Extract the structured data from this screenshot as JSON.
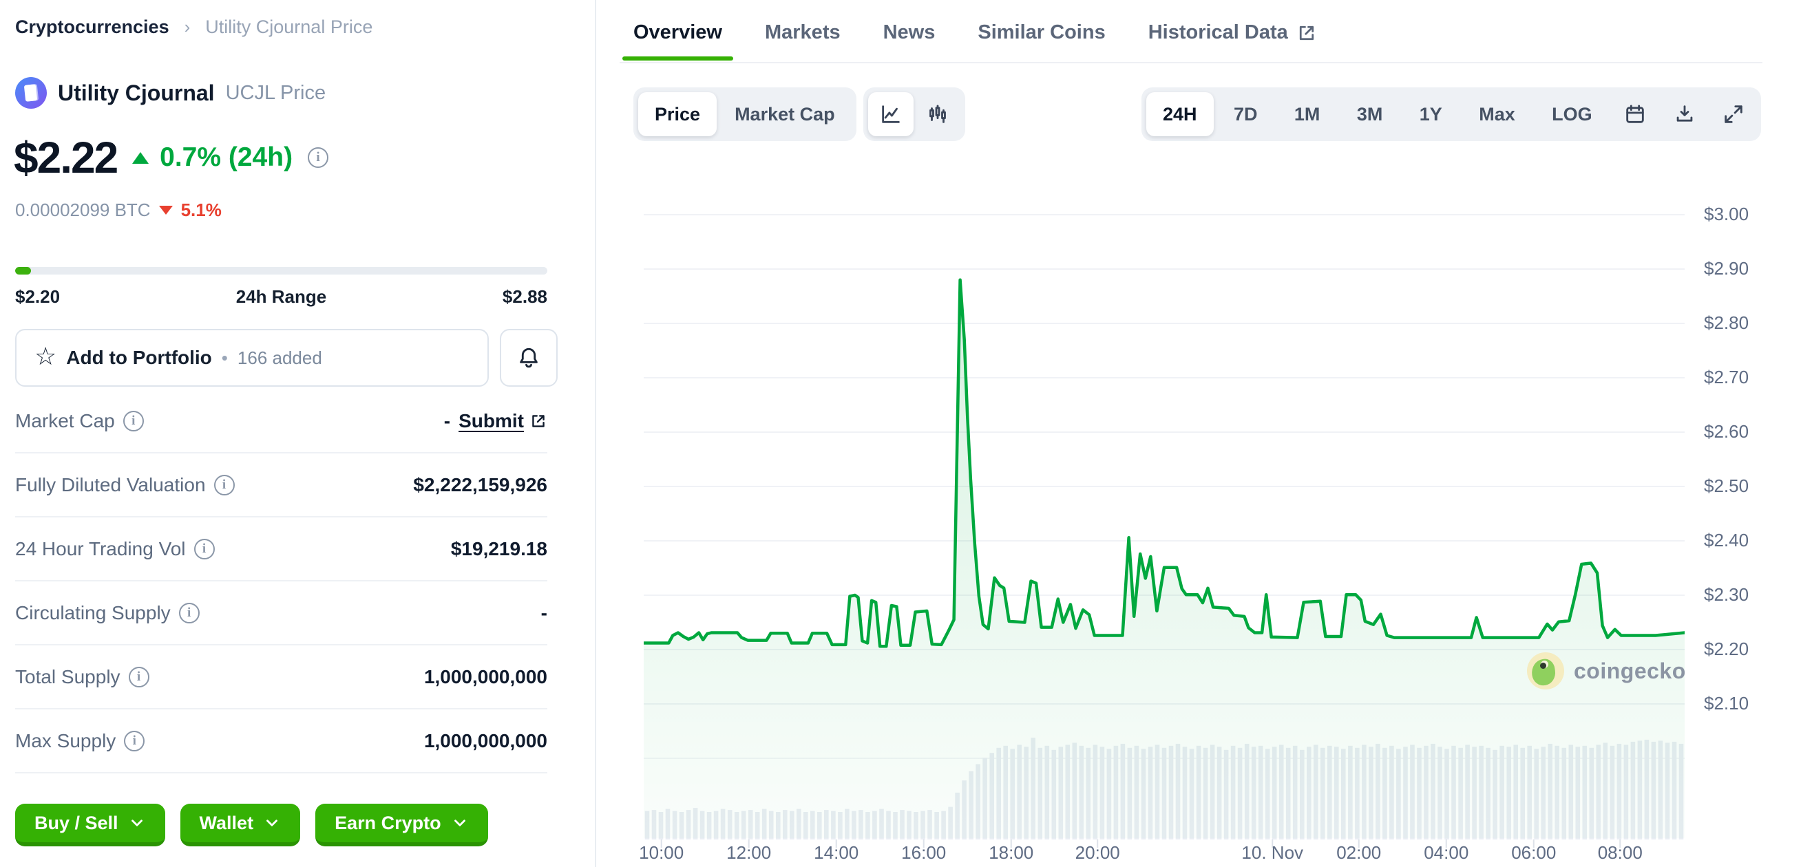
{
  "breadcrumb": {
    "root": "Cryptocurrencies",
    "separator": "›",
    "current": "Utility Cjournal Price"
  },
  "coin": {
    "name": "Utility Cjournal",
    "symbol_label": "UCJL Price",
    "price": "$2.22",
    "change_24h": "0.7% (24h)",
    "btc_price": "0.00002099 BTC",
    "btc_change": "5.1%",
    "range": {
      "low": "$2.20",
      "label": "24h Range",
      "high": "$2.88",
      "progress_pct": 3
    }
  },
  "actions": {
    "portfolio_label": "Add to Portfolio",
    "portfolio_dot": "•",
    "portfolio_added": "166 added"
  },
  "stats": {
    "rows": [
      {
        "label": "Market Cap",
        "value": "-",
        "link": "Submit"
      },
      {
        "label": "Fully Diluted Valuation",
        "value": "$2,222,159,926"
      },
      {
        "label": "24 Hour Trading Vol",
        "value": "$19,219.18"
      },
      {
        "label": "Circulating Supply",
        "value": "-"
      },
      {
        "label": "Total Supply",
        "value": "1,000,000,000"
      },
      {
        "label": "Max Supply",
        "value": "1,000,000,000"
      }
    ]
  },
  "cta_buttons": [
    {
      "label": "Buy / Sell"
    },
    {
      "label": "Wallet"
    },
    {
      "label": "Earn Crypto"
    }
  ],
  "tabs": [
    {
      "label": "Overview",
      "active": true
    },
    {
      "label": "Markets"
    },
    {
      "label": "News"
    },
    {
      "label": "Similar Coins"
    },
    {
      "label": "Historical Data",
      "external": true
    }
  ],
  "chart_controls": {
    "metric": [
      {
        "label": "Price",
        "active": true
      },
      {
        "label": "Market Cap"
      }
    ],
    "chart_types": [
      "line-chart",
      "candlestick-chart"
    ],
    "ranges": [
      {
        "label": "24H",
        "active": true
      },
      {
        "label": "7D"
      },
      {
        "label": "1M"
      },
      {
        "label": "3M"
      },
      {
        "label": "1Y"
      },
      {
        "label": "Max"
      },
      {
        "label": "LOG"
      }
    ],
    "icon_buttons": [
      "calendar",
      "download",
      "fullscreen"
    ]
  },
  "watermark": "coingecko",
  "chart_data": {
    "type": "line",
    "title": "Utility Cjournal (UCJL) price, 24H view",
    "legend_position": "none",
    "grid": true,
    "line_color": "#00a83e",
    "fill_color_top": "rgba(0,168,62,0.16)",
    "fill_color_bottom": "rgba(0,168,62,0.02)",
    "volume_color": "#e9edf3",
    "y_axis": {
      "ticks": [
        {
          "value": 3.0,
          "label": "$3.00"
        },
        {
          "value": 2.9,
          "label": "$2.90"
        },
        {
          "value": 2.8,
          "label": "$2.80"
        },
        {
          "value": 2.7,
          "label": "$2.70"
        },
        {
          "value": 2.6,
          "label": "$2.60"
        },
        {
          "value": 2.5,
          "label": "$2.50"
        },
        {
          "value": 2.4,
          "label": "$2.40"
        },
        {
          "value": 2.3,
          "label": "$2.30"
        },
        {
          "value": 2.2,
          "label": "$2.20"
        },
        {
          "value": 2.1,
          "label": "$2.10"
        }
      ],
      "extra_gridline_values": [
        2.0
      ],
      "range": [
        2.1,
        3.0
      ]
    },
    "x_labels": [
      {
        "label": "10:00",
        "f": 0.017
      },
      {
        "label": "12:00",
        "f": 0.101
      },
      {
        "label": "14:00",
        "f": 0.185
      },
      {
        "label": "16:00",
        "f": 0.269
      },
      {
        "label": "18:00",
        "f": 0.353
      },
      {
        "label": "20:00",
        "f": 0.436
      },
      {
        "label": "10. Nov",
        "f": 0.604
      },
      {
        "label": "02:00",
        "f": 0.687
      },
      {
        "label": "04:00",
        "f": 0.771
      },
      {
        "label": "06:00",
        "f": 0.855
      },
      {
        "label": "08:00",
        "f": 0.938
      }
    ],
    "price_series": [
      [
        0.0,
        2.212
      ],
      [
        0.024,
        2.212
      ],
      [
        0.028,
        2.226
      ],
      [
        0.033,
        2.231
      ],
      [
        0.038,
        2.224
      ],
      [
        0.043,
        2.219
      ],
      [
        0.048,
        2.223
      ],
      [
        0.053,
        2.231
      ],
      [
        0.057,
        2.218
      ],
      [
        0.061,
        2.229
      ],
      [
        0.065,
        2.231
      ],
      [
        0.09,
        2.231
      ],
      [
        0.094,
        2.222
      ],
      [
        0.1,
        2.217
      ],
      [
        0.118,
        2.217
      ],
      [
        0.122,
        2.23
      ],
      [
        0.138,
        2.23
      ],
      [
        0.142,
        2.212
      ],
      [
        0.158,
        2.212
      ],
      [
        0.162,
        2.23
      ],
      [
        0.176,
        2.23
      ],
      [
        0.181,
        2.209
      ],
      [
        0.194,
        2.209
      ],
      [
        0.198,
        2.298
      ],
      [
        0.203,
        2.3
      ],
      [
        0.206,
        2.296
      ],
      [
        0.21,
        2.216
      ],
      [
        0.215,
        2.212
      ],
      [
        0.219,
        2.29
      ],
      [
        0.223,
        2.287
      ],
      [
        0.227,
        2.206
      ],
      [
        0.233,
        2.206
      ],
      [
        0.238,
        2.281
      ],
      [
        0.243,
        2.279
      ],
      [
        0.247,
        2.208
      ],
      [
        0.256,
        2.208
      ],
      [
        0.261,
        2.269
      ],
      [
        0.272,
        2.271
      ],
      [
        0.277,
        2.21
      ],
      [
        0.286,
        2.209
      ],
      [
        0.293,
        2.235
      ],
      [
        0.298,
        2.255
      ],
      [
        0.304,
        2.88
      ],
      [
        0.308,
        2.77
      ],
      [
        0.311,
        2.63
      ],
      [
        0.314,
        2.515
      ],
      [
        0.318,
        2.395
      ],
      [
        0.322,
        2.298
      ],
      [
        0.326,
        2.246
      ],
      [
        0.331,
        2.238
      ],
      [
        0.337,
        2.332
      ],
      [
        0.342,
        2.318
      ],
      [
        0.346,
        2.313
      ],
      [
        0.351,
        2.252
      ],
      [
        0.366,
        2.25
      ],
      [
        0.372,
        2.326
      ],
      [
        0.377,
        2.322
      ],
      [
        0.382,
        2.241
      ],
      [
        0.392,
        2.241
      ],
      [
        0.398,
        2.293
      ],
      [
        0.403,
        2.25
      ],
      [
        0.41,
        2.283
      ],
      [
        0.415,
        2.239
      ],
      [
        0.422,
        2.273
      ],
      [
        0.428,
        2.264
      ],
      [
        0.433,
        2.226
      ],
      [
        0.46,
        2.226
      ],
      [
        0.466,
        2.406
      ],
      [
        0.471,
        2.261
      ],
      [
        0.477,
        2.376
      ],
      [
        0.482,
        2.331
      ],
      [
        0.487,
        2.371
      ],
      [
        0.493,
        2.271
      ],
      [
        0.5,
        2.351
      ],
      [
        0.512,
        2.351
      ],
      [
        0.517,
        2.312
      ],
      [
        0.521,
        2.301
      ],
      [
        0.532,
        2.301
      ],
      [
        0.537,
        2.286
      ],
      [
        0.542,
        2.313
      ],
      [
        0.547,
        2.278
      ],
      [
        0.562,
        2.276
      ],
      [
        0.567,
        2.263
      ],
      [
        0.577,
        2.261
      ],
      [
        0.581,
        2.24
      ],
      [
        0.587,
        2.231
      ],
      [
        0.594,
        2.231
      ],
      [
        0.598,
        2.301
      ],
      [
        0.603,
        2.223
      ],
      [
        0.628,
        2.222
      ],
      [
        0.634,
        2.287
      ],
      [
        0.65,
        2.289
      ],
      [
        0.655,
        2.224
      ],
      [
        0.67,
        2.224
      ],
      [
        0.675,
        2.301
      ],
      [
        0.684,
        2.301
      ],
      [
        0.689,
        2.291
      ],
      [
        0.693,
        2.252
      ],
      [
        0.701,
        2.246
      ],
      [
        0.708,
        2.265
      ],
      [
        0.714,
        2.226
      ],
      [
        0.721,
        2.222
      ],
      [
        0.795,
        2.222
      ],
      [
        0.8,
        2.259
      ],
      [
        0.806,
        2.222
      ],
      [
        0.86,
        2.222
      ],
      [
        0.868,
        2.247
      ],
      [
        0.873,
        2.236
      ],
      [
        0.879,
        2.251
      ],
      [
        0.889,
        2.253
      ],
      [
        0.895,
        2.301
      ],
      [
        0.901,
        2.357
      ],
      [
        0.91,
        2.359
      ],
      [
        0.916,
        2.341
      ],
      [
        0.921,
        2.244
      ],
      [
        0.926,
        2.222
      ],
      [
        0.933,
        2.237
      ],
      [
        0.939,
        2.226
      ],
      [
        0.972,
        2.226
      ],
      [
        1.0,
        2.231
      ]
    ],
    "volume_series": [
      0.28,
      0.29,
      0.27,
      0.3,
      0.28,
      0.27,
      0.29,
      0.31,
      0.28,
      0.27,
      0.28,
      0.3,
      0.29,
      0.27,
      0.28,
      0.29,
      0.27,
      0.3,
      0.28,
      0.27,
      0.29,
      0.28,
      0.3,
      0.27,
      0.28,
      0.27,
      0.29,
      0.28,
      0.27,
      0.3,
      0.28,
      0.29,
      0.27,
      0.28,
      0.3,
      0.28,
      0.27,
      0.29,
      0.28,
      0.27,
      0.28,
      0.29,
      0.27,
      0.28,
      0.32,
      0.46,
      0.58,
      0.67,
      0.74,
      0.8,
      0.85,
      0.9,
      0.92,
      0.89,
      0.93,
      0.91,
      1.0,
      0.9,
      0.92,
      0.88,
      0.91,
      0.93,
      0.95,
      0.92,
      0.9,
      0.93,
      0.91,
      0.89,
      0.92,
      0.94,
      0.9,
      0.92,
      0.89,
      0.91,
      0.93,
      0.9,
      0.92,
      0.94,
      0.91,
      0.89,
      0.92,
      0.9,
      0.93,
      0.91,
      0.88,
      0.92,
      0.9,
      0.94,
      0.91,
      0.92,
      0.89,
      0.91,
      0.93,
      0.9,
      0.92,
      0.88,
      0.91,
      0.93,
      0.9,
      0.92,
      0.91,
      0.89,
      0.92,
      0.9,
      0.93,
      0.91,
      0.94,
      0.9,
      0.92,
      0.89,
      0.91,
      0.93,
      0.9,
      0.92,
      0.94,
      0.91,
      0.89,
      0.92,
      0.9,
      0.93,
      0.91,
      0.92,
      0.9,
      0.88,
      0.92,
      0.91,
      0.93,
      0.9,
      0.92,
      0.89,
      0.91,
      0.94,
      0.92,
      0.9,
      0.93,
      0.91,
      0.92,
      0.9,
      0.93,
      0.95,
      0.92,
      0.94,
      0.93,
      0.96,
      0.97,
      0.98,
      0.96,
      0.97,
      0.95,
      0.96,
      0.94
    ]
  }
}
